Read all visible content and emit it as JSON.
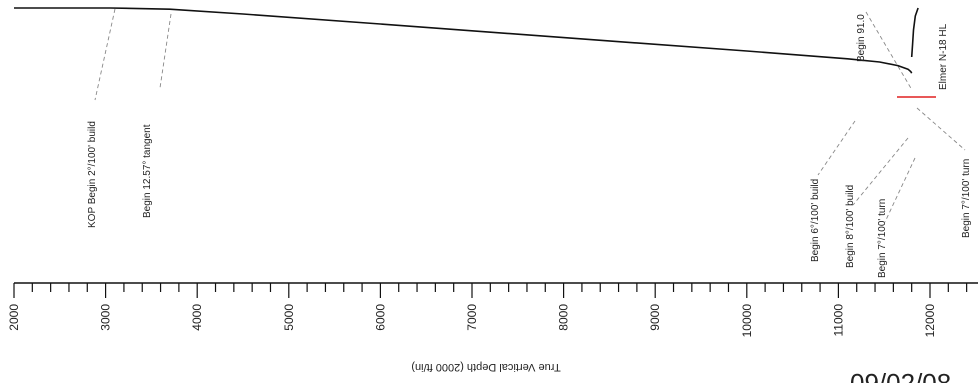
{
  "chart_data": {
    "type": "line",
    "xlabel": "True Vertical Depth (2000 ft/in)",
    "xlim": [
      2000,
      12500
    ],
    "x_ticks": [
      "2000",
      "3000",
      "4000",
      "5000",
      "6000",
      "7000",
      "8000",
      "9000",
      "10000",
      "11000",
      "12000"
    ],
    "series": [
      {
        "x": [
          2000,
          3050,
          3700,
          4500,
          6000,
          8000,
          10000,
          11100,
          11450,
          11650,
          11760,
          11790,
          11800
        ],
        "y": [
          0,
          0,
          -60,
          -300,
          -800,
          -1480,
          -2150,
          -2540,
          -2700,
          -2880,
          -3060,
          -3180,
          -3260
        ]
      },
      {
        "x": [
          11800,
          11810,
          11820,
          11840,
          11870
        ],
        "y": [
          -2450,
          -1800,
          -1100,
          -400,
          0
        ]
      }
    ],
    "annotations": [
      {
        "text": "KOP Begin 2°/100' build",
        "x": 3050
      },
      {
        "text": "Begin 12.57° tangent",
        "x": 3700
      },
      {
        "text": "Begin 6°/100' build",
        "x": 11100
      },
      {
        "text": "Begin 8°/100' build",
        "x": 11450
      },
      {
        "text": "Begin 7°/100' turn",
        "x": 11650
      },
      {
        "text": "Begin 91.0",
        "x": 11650
      },
      {
        "text": "Elmer N-18 HL",
        "x": 12000
      },
      {
        "text": "Begin 7°/100' turn",
        "x": 11830
      }
    ],
    "stamp": "09/02/08"
  },
  "colors": {
    "line": "#111111",
    "marker": "#e02020",
    "stamp": "#e02020",
    "leader": "#888888"
  }
}
